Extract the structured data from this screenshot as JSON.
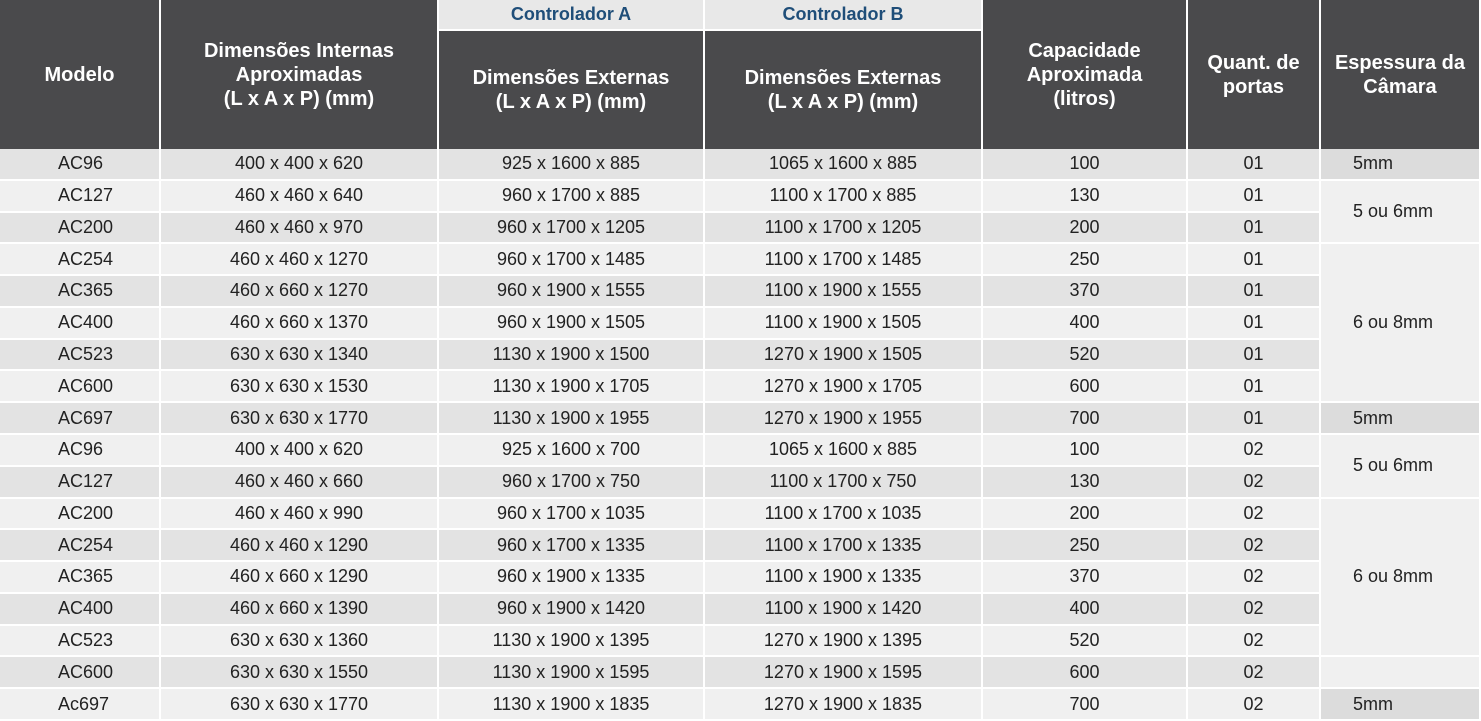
{
  "header": {
    "controller_a": "Controlador A",
    "controller_b": "Controlador B",
    "columns": [
      "Modelo",
      "Dimensões Internas\nAproximadas\n(L x A x P) (mm)",
      "Dimensões Externas\n(L x A x P) (mm)",
      "Dimensões Externas\n(L x A x P) (mm)",
      "Capacidade\nAproximada\n(litros)",
      "Quant. de\nportas",
      "Espessura da\nCâmara"
    ]
  },
  "rows": [
    [
      "AC96",
      "400 x 400 x 620",
      "925 x 1600 x 885",
      "1065 x 1600 x 885",
      "100",
      "01"
    ],
    [
      "AC127",
      "460 x 460 x 640",
      "960 x 1700 x 885",
      "1100 x 1700 x 885",
      "130",
      "01"
    ],
    [
      "AC200",
      "460 x 460 x 970",
      "960 x 1700 x 1205",
      "1100 x 1700 x 1205",
      "200",
      "01"
    ],
    [
      "AC254",
      "460 x 460 x 1270",
      "960 x 1700 x 1485",
      "1100 x 1700 x 1485",
      "250",
      "01"
    ],
    [
      "AC365",
      "460 x 660 x 1270",
      "960 x 1900 x 1555",
      "1100 x 1900 x 1555",
      "370",
      "01"
    ],
    [
      "AC400",
      "460 x 660 x 1370",
      "960 x 1900 x 1505",
      "1100 x 1900 x 1505",
      "400",
      "01"
    ],
    [
      "AC523",
      "630 x 630 x 1340",
      "1130 x 1900 x 1500",
      "1270 x 1900 x 1505",
      "520",
      "01"
    ],
    [
      "AC600",
      "630 x 630 x 1530",
      "1130 x 1900 x 1705",
      "1270 x 1900 x 1705",
      "600",
      "01"
    ],
    [
      "AC697",
      "630 x 630 x 1770",
      "1130 x 1900 x 1955",
      "1270 x 1900 x 1955",
      "700",
      "01"
    ],
    [
      "AC96",
      "400 x 400 x 620",
      "925 x 1600 x 700",
      "1065 x 1600 x 885",
      "100",
      "02"
    ],
    [
      "AC127",
      "460 x 460 x 660",
      "960 x 1700 x 750",
      "1100 x 1700 x 750",
      "130",
      "02"
    ],
    [
      "AC200",
      "460 x 460 x 990",
      "960 x 1700 x 1035",
      "1100 x 1700 x 1035",
      "200",
      "02"
    ],
    [
      "AC254",
      "460 x 460 x 1290",
      "960 x 1700 x 1335",
      "1100 x 1700 x 1335",
      "250",
      "02"
    ],
    [
      "AC365",
      "460 x 660 x 1290",
      "960 x 1900 x 1335",
      "1100 x 1900 x 1335",
      "370",
      "02"
    ],
    [
      "AC400",
      "460 x 660 x 1390",
      "960 x 1900 x 1420",
      "1100 x 1900 x 1420",
      "400",
      "02"
    ],
    [
      "AC523",
      "630 x 630 x 1360",
      "1130 x 1900 x 1395",
      "1270 x 1900 x 1395",
      "520",
      "02"
    ],
    [
      "AC600",
      "630 x 630 x 1550",
      "1130 x 1900 x 1595",
      "1270 x 1900 x 1595",
      "600",
      "02"
    ],
    [
      "Ac697",
      "630 x 630 x 1770",
      "1130 x 1900 x 1835",
      "1270 x 1900 x 1835",
      "700",
      "02"
    ]
  ],
  "thickness": [
    "5mm",
    "5 ou 6mm",
    "6 ou 8mm",
    "5mm",
    "5 ou 6mm",
    "6 ou 8mm",
    "5mm"
  ]
}
